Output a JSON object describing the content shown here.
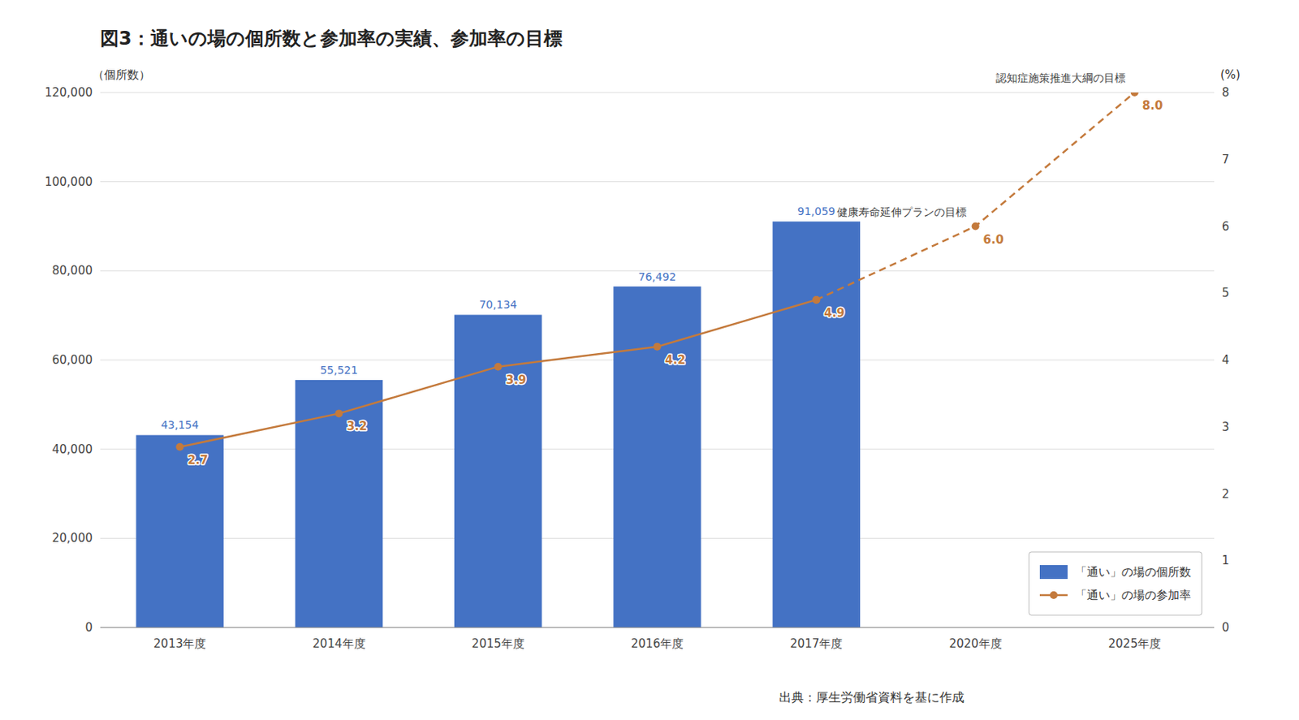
{
  "chart_data": {
    "type": "bar",
    "title": "図3：通いの場の個所数と参加率の実績、参加率の目標",
    "source": "出典：厚生労働省資料を基に作成",
    "y_label": "（個所数）",
    "y2_label": "(%)",
    "categories": [
      "2013年度",
      "2014年度",
      "2015年度",
      "2016年度",
      "2017年度",
      "2020年度",
      "2025年度"
    ],
    "series": [
      {
        "name": "「通い」の場の個所数",
        "type": "bar",
        "color": "#4472C4",
        "values": [
          43154,
          55521,
          70134,
          76492,
          91059,
          null,
          null
        ],
        "value_labels": [
          "43,154",
          "55,521",
          "70,134",
          "76,492",
          "91,059",
          null,
          null
        ]
      },
      {
        "name": "「通い」の場の参加率",
        "type": "line",
        "axis": "y2",
        "color": "#C47A3C",
        "marker": "circle",
        "line_style": "solid",
        "values": [
          2.7,
          3.2,
          3.9,
          4.2,
          4.9,
          null,
          null
        ]
      },
      {
        "type": "line",
        "axis": "y2",
        "color": "#C47A3C",
        "marker": "circle",
        "line_style": "dashed",
        "values": [
          null,
          null,
          null,
          null,
          4.9,
          6.0,
          8.0
        ],
        "value_labels": [
          null,
          null,
          null,
          null,
          null,
          "6.0",
          "8.0"
        ]
      }
    ],
    "annotations": [
      {
        "text": "健康寿命延伸プランの目標",
        "x": "2020年度"
      },
      {
        "text": "認知症施策推進大綱の目標",
        "x": "2025年度"
      }
    ],
    "ylim": [
      0,
      120000
    ],
    "yticks": [
      0,
      {
        "value": 20000,
        "label": "20,000"
      },
      {
        "value": 40000,
        "label": "40,000"
      },
      {
        "value": 60000,
        "label": "60,000"
      },
      {
        "value": 80000,
        "label": "80,000"
      },
      {
        "value": 100000,
        "label": "100,000"
      },
      {
        "value": 120000,
        "label": "120,000"
      }
    ],
    "y2lim": [
      0,
      8
    ],
    "y2ticks": [
      0,
      1,
      2,
      3,
      4,
      5,
      6,
      7,
      8
    ],
    "grid": true,
    "legend": "lower right",
    "data_labels": true
  }
}
